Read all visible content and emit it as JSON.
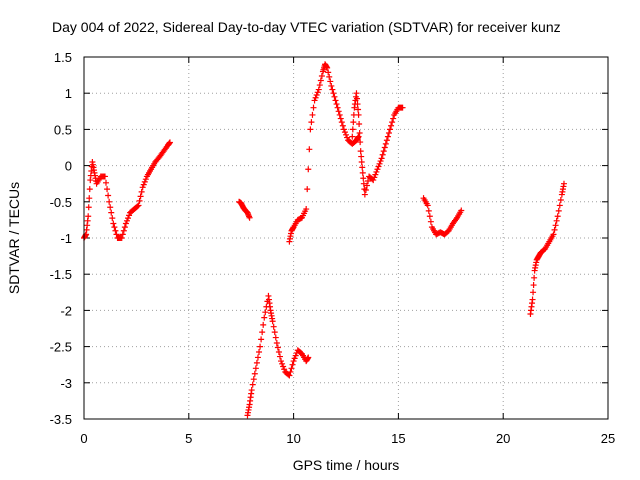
{
  "chart_data": {
    "type": "scatter",
    "title": "Day 004 of 2022, Sidereal Day-to-day VTEC variation (SDTVAR) for receiver kunz",
    "xlabel": "GPS time / hours",
    "ylabel": "SDTVAR / TECUs",
    "xlim": [
      0,
      25
    ],
    "ylim": [
      -3.5,
      1.5
    ],
    "x_ticks": [
      0,
      5,
      10,
      15,
      20,
      25
    ],
    "y_ticks": [
      -3.5,
      -3,
      -2.5,
      -2,
      -1.5,
      -1,
      -0.5,
      0,
      0.5,
      1,
      1.5
    ],
    "x_tick_labels": [
      "0",
      "5",
      "10",
      "15",
      "20",
      "25"
    ],
    "y_tick_labels": [
      "-3.5",
      "-3",
      "-2.5",
      "-2",
      "-1.5",
      "-1",
      "-0.5",
      "0",
      "0.5",
      "1",
      "1.5"
    ],
    "grid": true,
    "marker": "plus",
    "color": "#ff0000",
    "series": [
      {
        "x": [
          0.0,
          0.1,
          0.2,
          0.3,
          0.4,
          0.5,
          0.6,
          0.8,
          1.0,
          1.2,
          1.4,
          1.6,
          1.8,
          2.0,
          2.2,
          2.4,
          2.6,
          2.8,
          3.0,
          3.2,
          3.4,
          3.6,
          3.8,
          4.0,
          4.1
        ],
        "y": [
          -1.0,
          -0.95,
          -0.7,
          -0.2,
          0.05,
          -0.1,
          -0.25,
          -0.15,
          -0.15,
          -0.5,
          -0.8,
          -1.0,
          -1.0,
          -0.8,
          -0.65,
          -0.6,
          -0.55,
          -0.3,
          -0.15,
          -0.05,
          0.05,
          0.12,
          0.2,
          0.28,
          0.32
        ]
      },
      {
        "x": [
          7.4,
          7.5,
          7.6,
          7.7,
          7.8,
          7.9
        ],
        "y": [
          -0.5,
          -0.52,
          -0.58,
          -0.62,
          -0.65,
          -0.72
        ]
      },
      {
        "x": [
          7.8,
          7.9,
          8.0,
          8.2,
          8.4,
          8.6,
          8.8,
          8.9,
          9.0,
          9.2,
          9.4,
          9.6,
          9.8,
          10.0,
          10.2,
          10.4,
          10.6,
          10.7
        ],
        "y": [
          -3.45,
          -3.3,
          -3.1,
          -2.8,
          -2.5,
          -2.1,
          -1.8,
          -2.0,
          -2.15,
          -2.45,
          -2.7,
          -2.85,
          -2.9,
          -2.7,
          -2.55,
          -2.6,
          -2.7,
          -2.65
        ]
      },
      {
        "x": [
          9.8,
          9.9,
          10.0,
          10.2,
          10.4,
          10.6,
          10.8,
          11.0,
          11.2,
          11.4,
          11.5,
          11.6,
          11.8,
          12.0,
          12.2,
          12.4,
          12.6,
          12.8,
          13.0,
          13.1
        ],
        "y": [
          -1.05,
          -0.9,
          -0.85,
          -0.75,
          -0.72,
          -0.6,
          0.5,
          0.9,
          1.05,
          1.3,
          1.4,
          1.35,
          1.1,
          0.9,
          0.7,
          0.5,
          0.35,
          0.3,
          0.35,
          0.4
        ]
      },
      {
        "x": [
          12.8,
          12.9,
          13.0,
          13.1,
          13.2,
          13.3,
          13.4,
          13.6,
          13.8,
          14.0,
          14.2,
          14.4,
          14.6,
          14.8,
          15.0,
          15.2
        ],
        "y": [
          0.4,
          0.8,
          1.0,
          0.7,
          0.2,
          -0.1,
          -0.4,
          -0.15,
          -0.2,
          -0.05,
          0.1,
          0.3,
          0.5,
          0.7,
          0.8,
          0.8
        ]
      },
      {
        "x": [
          16.2,
          16.4,
          16.6,
          16.8,
          17.0,
          17.2,
          17.4,
          17.6,
          17.8,
          18.0
        ],
        "y": [
          -0.45,
          -0.55,
          -0.85,
          -0.95,
          -0.92,
          -0.95,
          -0.9,
          -0.8,
          -0.72,
          -0.62
        ]
      },
      {
        "x": [
          21.3,
          21.4,
          21.5,
          21.6,
          21.7,
          21.8,
          22.0,
          22.2,
          22.4,
          22.6,
          22.8,
          22.9
        ],
        "y": [
          -2.05,
          -1.85,
          -1.45,
          -1.3,
          -1.25,
          -1.2,
          -1.15,
          -1.05,
          -0.95,
          -0.7,
          -0.4,
          -0.25
        ]
      }
    ]
  }
}
